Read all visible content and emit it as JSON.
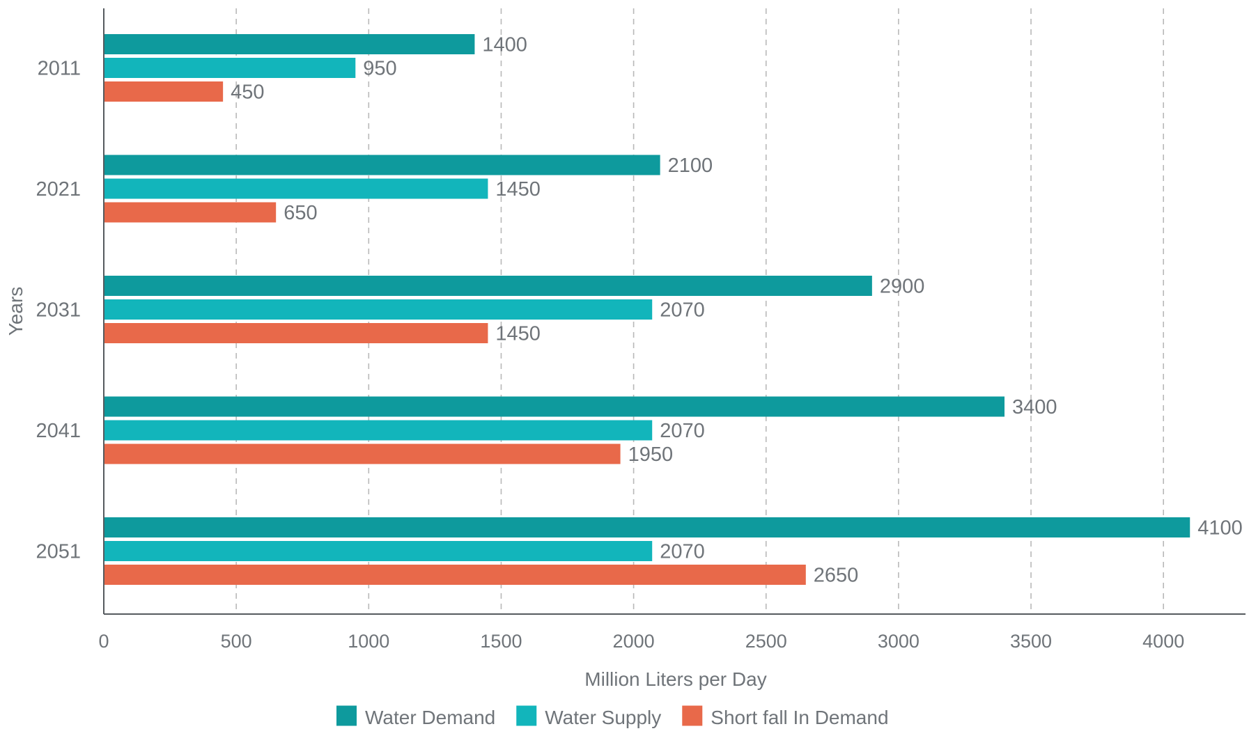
{
  "chart_data": {
    "type": "bar",
    "orientation": "horizontal",
    "categories": [
      "2011",
      "2021",
      "2031",
      "2041",
      "2051"
    ],
    "series": [
      {
        "name": "Water Demand",
        "color": "#0e9a9d",
        "values": [
          1400,
          2100,
          2900,
          3400,
          4100
        ]
      },
      {
        "name": "Water Supply",
        "color": "#12b5bb",
        "values": [
          950,
          1450,
          2070,
          2070,
          2070
        ]
      },
      {
        "name": "Short fall In Demand",
        "color": "#e8694a",
        "values": [
          450,
          650,
          1450,
          1950,
          2650
        ]
      }
    ],
    "xlabel": "Million Liters per Day",
    "ylabel": "Years",
    "xlim": [
      0,
      4300
    ],
    "xticks": [
      0,
      500,
      1000,
      1500,
      2000,
      2500,
      3000,
      3500,
      4000
    ],
    "grid": "vertical-dashed",
    "legend_position": "bottom-center",
    "data_labels": true
  }
}
